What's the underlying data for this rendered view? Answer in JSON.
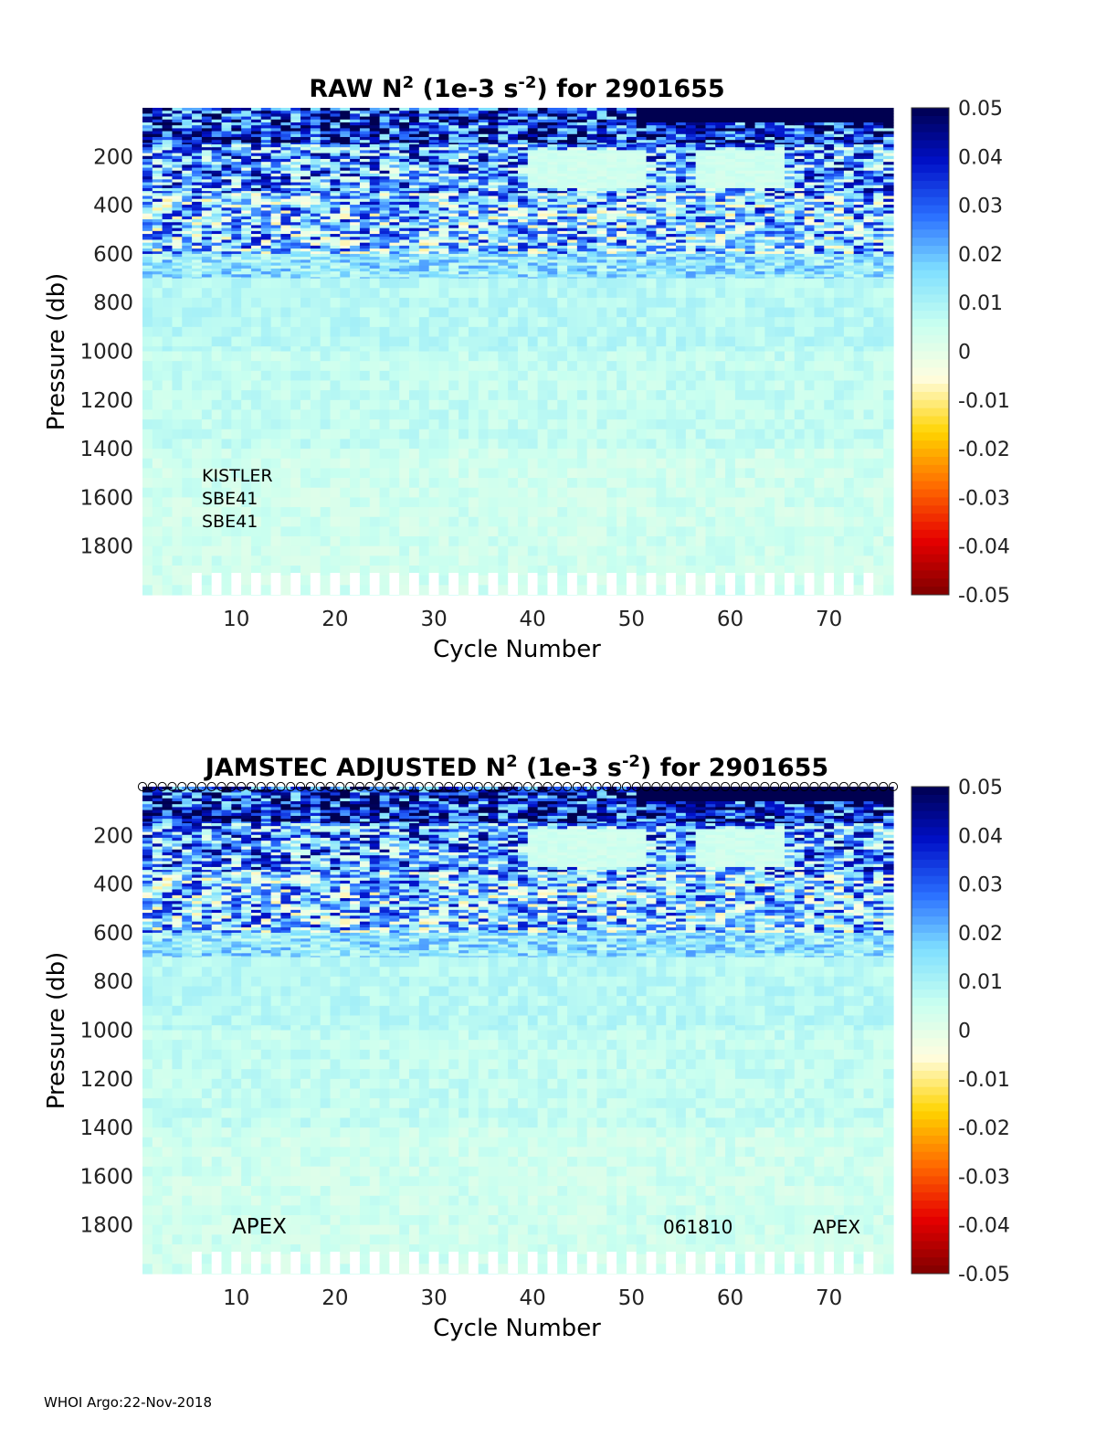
{
  "footer": "WHOI Argo:22-Nov-2018",
  "colormap": [
    "#7f0000",
    "#e60000",
    "#ff6a00",
    "#ffd400",
    "#fffde0",
    "#c8fff0",
    "#7fdfff",
    "#2a6fff",
    "#0010c8",
    "#000050"
  ],
  "chart_data": [
    {
      "type": "heatmap",
      "title": "RAW N² (1e-3 s⁻²) for 2901655",
      "title_parts": {
        "prefix": "RAW N",
        "sup1": "2",
        "middle": " (1e-3 s",
        "sup2": "-2",
        "suffix": ") for 2901655"
      },
      "xlabel": "Cycle Number",
      "ylabel": "Pressure (db)",
      "xlim": [
        1,
        76
      ],
      "ylim": [
        2000,
        0
      ],
      "xticks": [
        10,
        20,
        30,
        40,
        50,
        60,
        70
      ],
      "yticks": [
        200,
        400,
        600,
        800,
        1000,
        1200,
        1400,
        1600,
        1800
      ],
      "clim": [
        -0.05,
        0.05
      ],
      "colorbar_ticks": [
        "0.05",
        "0.04",
        "0.03",
        "0.02",
        "0.01",
        "0",
        "-0.01",
        "-0.02",
        "-0.03",
        "-0.04",
        "-0.05"
      ],
      "annotations": [
        "KISTLER",
        "SBE41",
        "SBE41"
      ],
      "pressure_bands": [
        {
          "p_min": 0,
          "p_max": 150,
          "mean": 0.034
        },
        {
          "p_min": 150,
          "p_max": 350,
          "mean": 0.022
        },
        {
          "p_min": 350,
          "p_max": 600,
          "mean": 0.016
        },
        {
          "p_min": 600,
          "p_max": 700,
          "mean": 0.014
        },
        {
          "p_min": 700,
          "p_max": 1000,
          "mean": 0.008
        },
        {
          "p_min": 1000,
          "p_max": 1400,
          "mean": 0.006
        },
        {
          "p_min": 1400,
          "p_max": 2000,
          "mean": 0.004
        }
      ],
      "markers_row": false
    },
    {
      "type": "heatmap",
      "title": "JAMSTEC ADJUSTED N² (1e-3 s⁻²) for 2901655",
      "title_parts": {
        "prefix": "JAMSTEC  ADJUSTED N",
        "sup1": "2",
        "middle": " (1e-3 s",
        "sup2": "-2",
        "suffix": ") for 2901655"
      },
      "xlabel": "Cycle Number",
      "ylabel": "Pressure (db)",
      "xlim": [
        1,
        76
      ],
      "ylim": [
        2000,
        0
      ],
      "xticks": [
        10,
        20,
        30,
        40,
        50,
        60,
        70
      ],
      "yticks": [
        200,
        400,
        600,
        800,
        1000,
        1200,
        1400,
        1600,
        1800
      ],
      "clim": [
        -0.05,
        0.05
      ],
      "colorbar_ticks": [
        "0.05",
        "0.04",
        "0.03",
        "0.02",
        "0.01",
        "0",
        "-0.01",
        "-0.02",
        "-0.03",
        "-0.04",
        "-0.05"
      ],
      "annotations": [
        "APEX",
        "061810",
        "APEX"
      ],
      "pressure_bands": [
        {
          "p_min": 0,
          "p_max": 150,
          "mean": 0.036
        },
        {
          "p_min": 150,
          "p_max": 350,
          "mean": 0.022
        },
        {
          "p_min": 350,
          "p_max": 600,
          "mean": 0.016
        },
        {
          "p_min": 600,
          "p_max": 700,
          "mean": 0.014
        },
        {
          "p_min": 700,
          "p_max": 1000,
          "mean": 0.008
        },
        {
          "p_min": 1000,
          "p_max": 1400,
          "mean": 0.006
        },
        {
          "p_min": 1400,
          "p_max": 2000,
          "mean": 0.004
        }
      ],
      "markers_row": true
    }
  ]
}
